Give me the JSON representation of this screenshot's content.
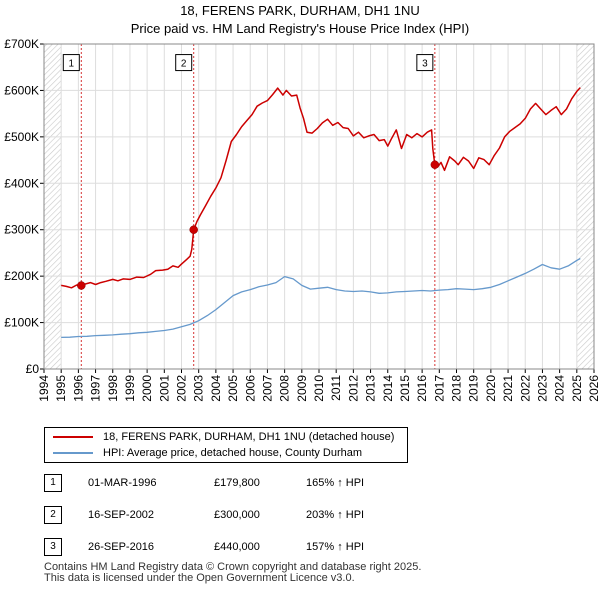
{
  "chart_data": {
    "type": "line",
    "title": "18, FERENS PARK, DURHAM, DH1 1NU",
    "subtitle": "Price paid vs. HM Land Registry's House Price Index (HPI)",
    "xlabel": "",
    "ylabel": "",
    "xlim": [
      1994,
      2026
    ],
    "ylim": [
      0,
      700000
    ],
    "x_ticks": [
      "1994",
      "1995",
      "1996",
      "1997",
      "1998",
      "1999",
      "2000",
      "2001",
      "2002",
      "2003",
      "2004",
      "2005",
      "2006",
      "2007",
      "2008",
      "2009",
      "2010",
      "2011",
      "2012",
      "2013",
      "2014",
      "2015",
      "2016",
      "2017",
      "2018",
      "2019",
      "2020",
      "2021",
      "2022",
      "2023",
      "2024",
      "2025",
      "2026"
    ],
    "y_ticks": [
      {
        "value": 0,
        "label": "£0"
      },
      {
        "value": 100000,
        "label": "£100K"
      },
      {
        "value": 200000,
        "label": "£200K"
      },
      {
        "value": 300000,
        "label": "£300K"
      },
      {
        "value": 400000,
        "label": "£400K"
      },
      {
        "value": 500000,
        "label": "£500K"
      },
      {
        "value": 600000,
        "label": "£600K"
      },
      {
        "value": 700000,
        "label": "£700K"
      }
    ],
    "grid": true,
    "series": [
      {
        "name": "18, FERENS PARK, DURHAM, DH1 1NU (detached house)",
        "color": "#cc0000",
        "points": [
          [
            1995.0,
            180000
          ],
          [
            1995.3,
            178000
          ],
          [
            1995.6,
            175000
          ],
          [
            1995.9,
            181000
          ],
          [
            1996.17,
            179800
          ],
          [
            1996.4,
            183000
          ],
          [
            1996.7,
            186000
          ],
          [
            1997.0,
            182000
          ],
          [
            1997.3,
            186000
          ],
          [
            1997.6,
            189000
          ],
          [
            1998.0,
            193000
          ],
          [
            1998.3,
            190000
          ],
          [
            1998.6,
            194000
          ],
          [
            1999.0,
            193000
          ],
          [
            1999.4,
            198000
          ],
          [
            1999.8,
            197000
          ],
          [
            2000.2,
            204000
          ],
          [
            2000.5,
            212000
          ],
          [
            2000.9,
            213000
          ],
          [
            2001.2,
            215000
          ],
          [
            2001.5,
            222000
          ],
          [
            2001.8,
            219000
          ],
          [
            2002.0,
            226000
          ],
          [
            2002.3,
            236000
          ],
          [
            2002.5,
            243000
          ],
          [
            2002.6,
            258000
          ],
          [
            2002.71,
            300000
          ],
          [
            2002.9,
            318000
          ],
          [
            2003.1,
            332000
          ],
          [
            2003.4,
            352000
          ],
          [
            2003.7,
            372000
          ],
          [
            2004.0,
            390000
          ],
          [
            2004.3,
            412000
          ],
          [
            2004.6,
            450000
          ],
          [
            2004.9,
            490000
          ],
          [
            2005.2,
            505000
          ],
          [
            2005.5,
            522000
          ],
          [
            2005.8,
            535000
          ],
          [
            2006.1,
            548000
          ],
          [
            2006.4,
            566000
          ],
          [
            2006.7,
            573000
          ],
          [
            2007.0,
            578000
          ],
          [
            2007.3,
            591000
          ],
          [
            2007.6,
            605000
          ],
          [
            2007.9,
            590000
          ],
          [
            2008.1,
            600000
          ],
          [
            2008.4,
            588000
          ],
          [
            2008.7,
            590000
          ],
          [
            2008.9,
            562000
          ],
          [
            2009.1,
            540000
          ],
          [
            2009.3,
            510000
          ],
          [
            2009.6,
            508000
          ],
          [
            2009.9,
            518000
          ],
          [
            2010.2,
            530000
          ],
          [
            2010.5,
            538000
          ],
          [
            2010.8,
            525000
          ],
          [
            2011.1,
            531000
          ],
          [
            2011.4,
            520000
          ],
          [
            2011.7,
            518000
          ],
          [
            2012.0,
            502000
          ],
          [
            2012.3,
            510000
          ],
          [
            2012.6,
            498000
          ],
          [
            2012.9,
            502000
          ],
          [
            2013.2,
            505000
          ],
          [
            2013.5,
            492000
          ],
          [
            2013.8,
            494000
          ],
          [
            2014.0,
            480000
          ],
          [
            2014.2,
            495000
          ],
          [
            2014.5,
            515000
          ],
          [
            2014.8,
            475000
          ],
          [
            2015.1,
            505000
          ],
          [
            2015.4,
            498000
          ],
          [
            2015.7,
            507000
          ],
          [
            2016.0,
            500000
          ],
          [
            2016.3,
            510000
          ],
          [
            2016.55,
            515000
          ],
          [
            2016.62,
            475000
          ],
          [
            2016.74,
            440000
          ],
          [
            2016.9,
            435000
          ],
          [
            2017.1,
            445000
          ],
          [
            2017.3,
            428000
          ],
          [
            2017.6,
            457000
          ],
          [
            2017.9,
            448000
          ],
          [
            2018.1,
            440000
          ],
          [
            2018.4,
            456000
          ],
          [
            2018.7,
            448000
          ],
          [
            2019.0,
            432000
          ],
          [
            2019.3,
            455000
          ],
          [
            2019.6,
            451000
          ],
          [
            2019.9,
            440000
          ],
          [
            2020.2,
            460000
          ],
          [
            2020.5,
            476000
          ],
          [
            2020.8,
            500000
          ],
          [
            2021.1,
            512000
          ],
          [
            2021.4,
            520000
          ],
          [
            2021.7,
            528000
          ],
          [
            2022.0,
            540000
          ],
          [
            2022.3,
            560000
          ],
          [
            2022.6,
            572000
          ],
          [
            2022.9,
            560000
          ],
          [
            2023.2,
            548000
          ],
          [
            2023.5,
            557000
          ],
          [
            2023.8,
            565000
          ],
          [
            2024.1,
            548000
          ],
          [
            2024.4,
            560000
          ],
          [
            2024.7,
            582000
          ],
          [
            2025.0,
            598000
          ],
          [
            2025.2,
            606000
          ]
        ]
      },
      {
        "name": "HPI: Average price, detached house, County Durham",
        "color": "#6699cc",
        "points": [
          [
            1995.0,
            68000
          ],
          [
            1995.5,
            68500
          ],
          [
            1996.0,
            70000
          ],
          [
            1996.5,
            70500
          ],
          [
            1997.0,
            72000
          ],
          [
            1997.5,
            72500
          ],
          [
            1998.0,
            73500
          ],
          [
            1998.5,
            75000
          ],
          [
            1999.0,
            76000
          ],
          [
            1999.5,
            78000
          ],
          [
            2000.0,
            79000
          ],
          [
            2000.5,
            81000
          ],
          [
            2001.0,
            83000
          ],
          [
            2001.5,
            86000
          ],
          [
            2002.0,
            91000
          ],
          [
            2002.5,
            96000
          ],
          [
            2003.0,
            104000
          ],
          [
            2003.5,
            115000
          ],
          [
            2004.0,
            128000
          ],
          [
            2004.5,
            143000
          ],
          [
            2005.0,
            158000
          ],
          [
            2005.5,
            166000
          ],
          [
            2006.0,
            171000
          ],
          [
            2006.5,
            177000
          ],
          [
            2007.0,
            181000
          ],
          [
            2007.5,
            186000
          ],
          [
            2008.0,
            199000
          ],
          [
            2008.5,
            194000
          ],
          [
            2009.0,
            180000
          ],
          [
            2009.5,
            172000
          ],
          [
            2010.0,
            174000
          ],
          [
            2010.5,
            176000
          ],
          [
            2011.0,
            171000
          ],
          [
            2011.5,
            168000
          ],
          [
            2012.0,
            167000
          ],
          [
            2012.5,
            168000
          ],
          [
            2013.0,
            166000
          ],
          [
            2013.5,
            163000
          ],
          [
            2014.0,
            164000
          ],
          [
            2014.5,
            166000
          ],
          [
            2015.0,
            167000
          ],
          [
            2015.5,
            168000
          ],
          [
            2016.0,
            169000
          ],
          [
            2016.5,
            168000
          ],
          [
            2017.0,
            170000
          ],
          [
            2017.5,
            171000
          ],
          [
            2018.0,
            173000
          ],
          [
            2018.5,
            172000
          ],
          [
            2019.0,
            171000
          ],
          [
            2019.5,
            173000
          ],
          [
            2020.0,
            176000
          ],
          [
            2020.5,
            182000
          ],
          [
            2021.0,
            190000
          ],
          [
            2021.5,
            198000
          ],
          [
            2022.0,
            206000
          ],
          [
            2022.5,
            215000
          ],
          [
            2023.0,
            225000
          ],
          [
            2023.5,
            218000
          ],
          [
            2024.0,
            215000
          ],
          [
            2024.5,
            222000
          ],
          [
            2025.0,
            234000
          ],
          [
            2025.2,
            238000
          ]
        ]
      }
    ],
    "sales": [
      {
        "num": "1",
        "x": 1996.17,
        "price": 179800
      },
      {
        "num": "2",
        "x": 2002.71,
        "price": 300000
      },
      {
        "num": "3",
        "x": 2016.74,
        "price": 440000
      }
    ],
    "marker_label_value": 660000,
    "hatch_ranges": [
      [
        1994,
        1995.0
      ],
      [
        2025.0,
        2026
      ]
    ]
  },
  "legend": {
    "property_label": "18, FERENS PARK, DURHAM, DH1 1NU (detached house)",
    "hpi_label": "HPI: Average price, detached house, County Durham"
  },
  "transactions": [
    {
      "num": "1",
      "date": "01-MAR-1996",
      "price": "£179,800",
      "hpi": "165% ↑ HPI"
    },
    {
      "num": "2",
      "date": "16-SEP-2002",
      "price": "£300,000",
      "hpi": "203% ↑ HPI"
    },
    {
      "num": "3",
      "date": "26-SEP-2016",
      "price": "£440,000",
      "hpi": "157% ↑ HPI"
    }
  ],
  "footer": {
    "line1": "Contains HM Land Registry data © Crown copyright and database right 2025.",
    "line2": "This data is licensed under the Open Government Licence v3.0."
  }
}
